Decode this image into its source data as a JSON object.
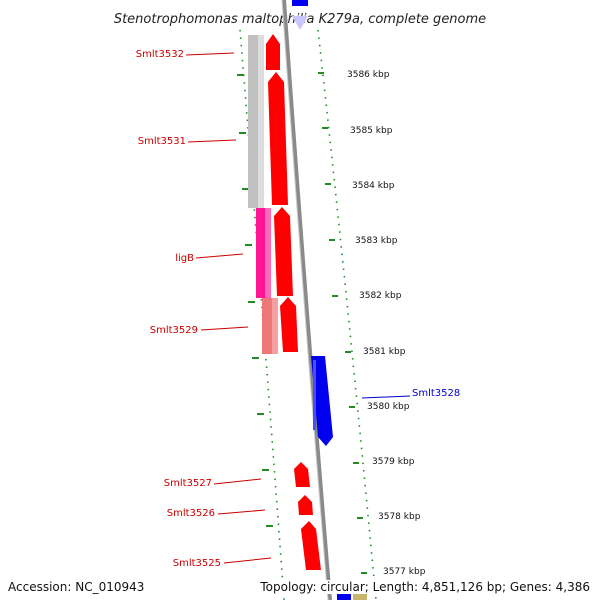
{
  "title": "Stenotrophomonas maltophilia K279a, complete genome",
  "footer": {
    "accession": "Accession: NC_010943",
    "summary": "Topology: circular; Length: 4,851,126 bp; Genes: 4,386"
  },
  "colors": {
    "forward_gene": "#ff0000",
    "reverse_gene": "#0000ee",
    "gene_label_forward": "#cc0000",
    "gene_label_reverse": "#0000cc",
    "backbone": "#888888",
    "dotted_track": "#228b22"
  },
  "position_labels": [
    "3586 kbp",
    "3585 kbp",
    "3584 kbp",
    "3583 kbp",
    "3582 kbp",
    "3581 kbp",
    "3580 kbp",
    "3579 kbp",
    "3578 kbp",
    "3577 kbp"
  ],
  "genes": [
    {
      "label": "Smlt3532",
      "strand": "forward"
    },
    {
      "label": "Smlt3531",
      "strand": "forward"
    },
    {
      "label": "ligB",
      "strand": "forward"
    },
    {
      "label": "Smlt3529",
      "strand": "forward"
    },
    {
      "label": "Smlt3528",
      "strand": "reverse"
    },
    {
      "label": "Smlt3527",
      "strand": "forward"
    },
    {
      "label": "Smlt3526",
      "strand": "forward"
    },
    {
      "label": "Smlt3525",
      "strand": "forward"
    }
  ]
}
